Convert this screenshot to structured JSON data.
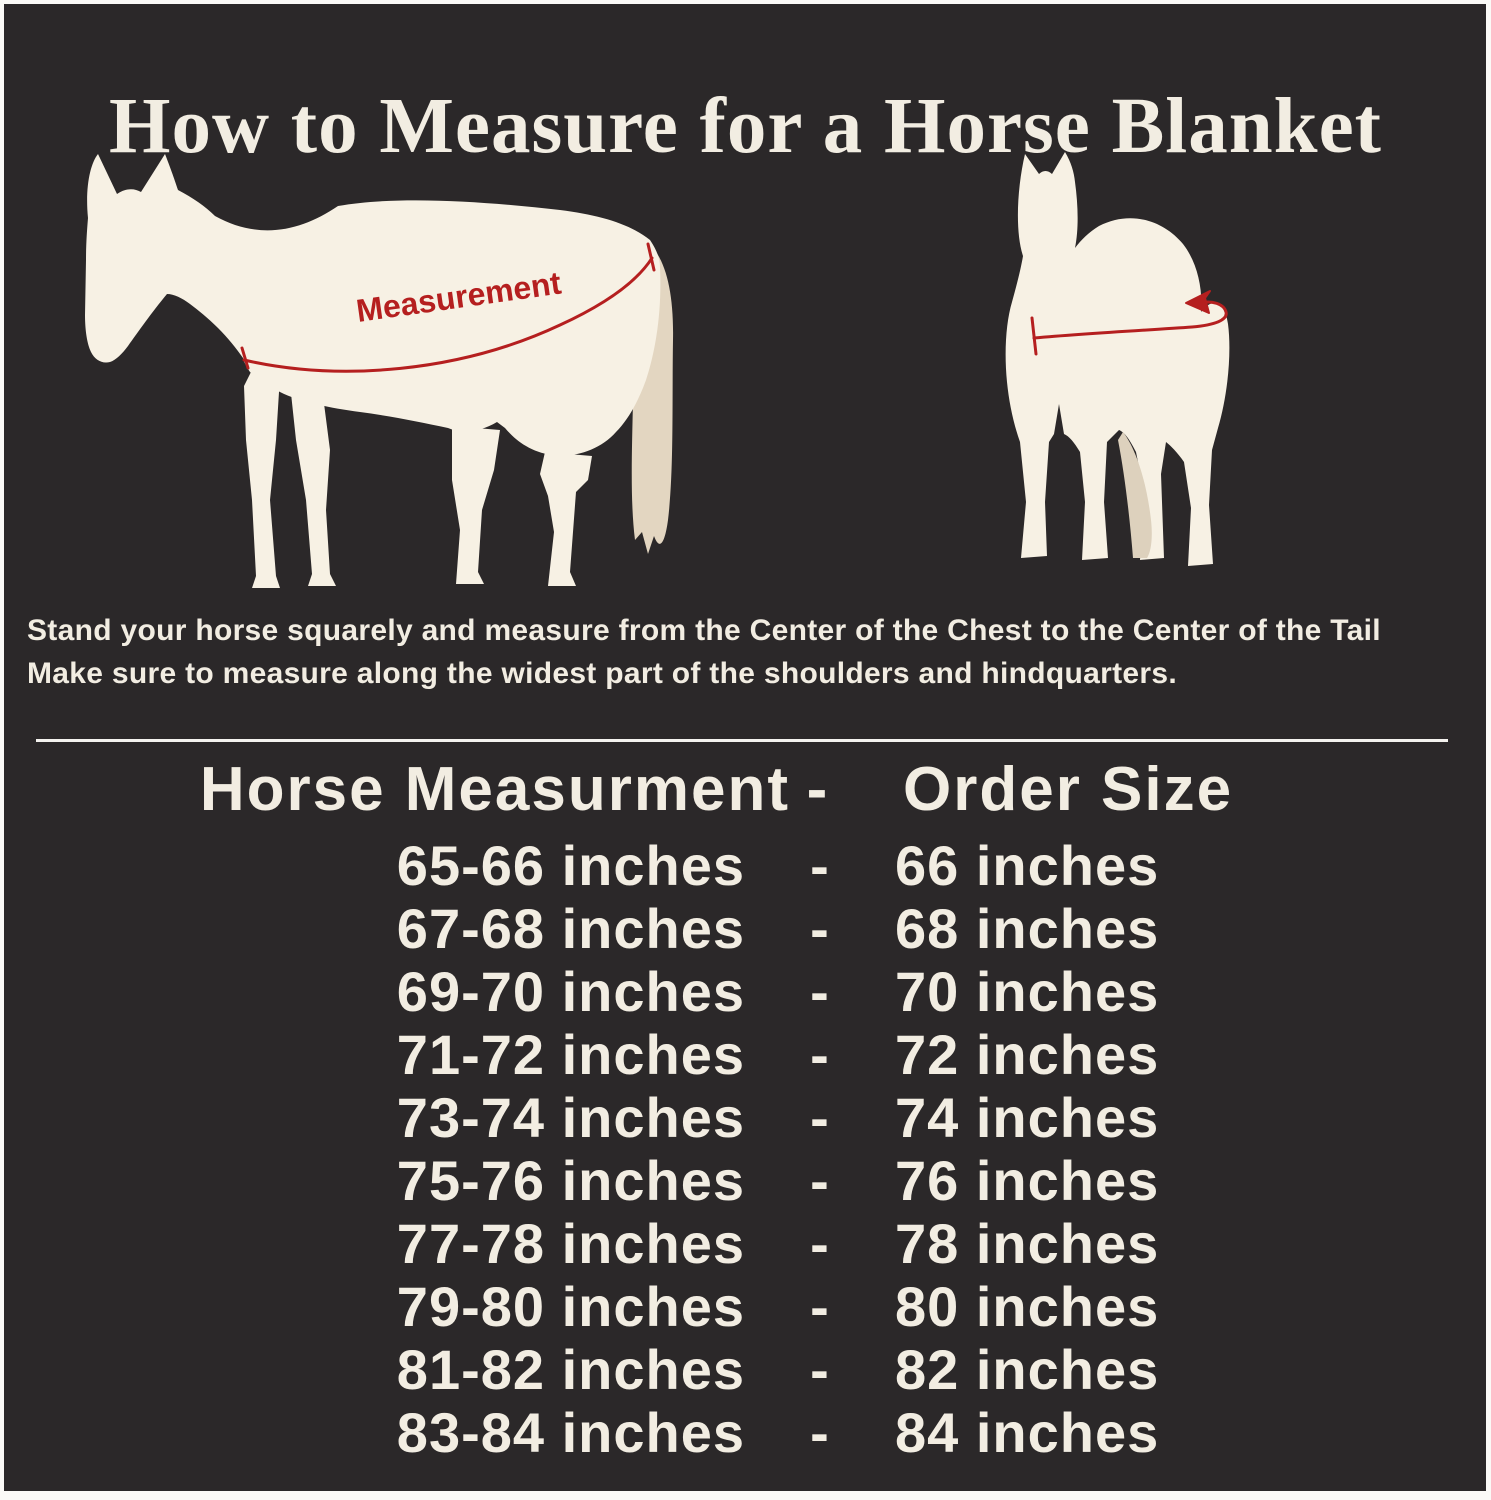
{
  "title": "How to Measure for a Horse Blanket",
  "diagram": {
    "measurement_label": "Measurement",
    "colors": {
      "background": "#2b2829",
      "frame": "#fbfaf7",
      "text_cream": "#f2ede2",
      "horse_body": "#f7f1e4",
      "horse_shade": "#e3d6c1",
      "annotation_red": "#b51f1f"
    }
  },
  "instructions": {
    "line1": "Stand your horse squarely and measure from the Center of the Chest to the Center of the Tail",
    "line2": "Make sure to measure along the widest part of the shoulders and hindquarters."
  },
  "size_chart": {
    "header": {
      "measurement": "Horse Measurment",
      "separator": "-",
      "order": "Order Size"
    },
    "rows": [
      {
        "measurement": "65-66 inches",
        "separator": "-",
        "order": "66 inches"
      },
      {
        "measurement": "67-68 inches",
        "separator": "-",
        "order": "68 inches"
      },
      {
        "measurement": "69-70 inches",
        "separator": "-",
        "order": "70 inches"
      },
      {
        "measurement": "71-72 inches",
        "separator": "-",
        "order": "72 inches"
      },
      {
        "measurement": "73-74 inches",
        "separator": "-",
        "order": "74 inches"
      },
      {
        "measurement": "75-76 inches",
        "separator": "-",
        "order": "76 inches"
      },
      {
        "measurement": "77-78 inches",
        "separator": "-",
        "order": "78 inches"
      },
      {
        "measurement": "79-80 inches",
        "separator": "-",
        "order": "80 inches"
      },
      {
        "measurement": "81-82 inches",
        "separator": "-",
        "order": "82 inches"
      },
      {
        "measurement": "83-84 inches",
        "separator": "-",
        "order": "84 inches"
      }
    ]
  }
}
